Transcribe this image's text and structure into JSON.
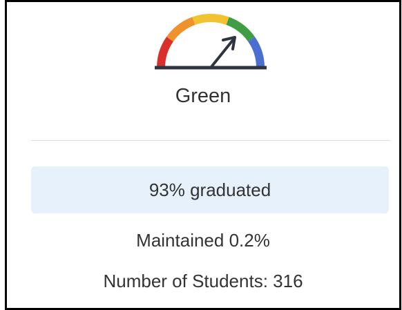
{
  "status": "Green",
  "graduation": "93% graduated",
  "change": "Maintained 0.2%",
  "students": "Number of Students: 316"
}
